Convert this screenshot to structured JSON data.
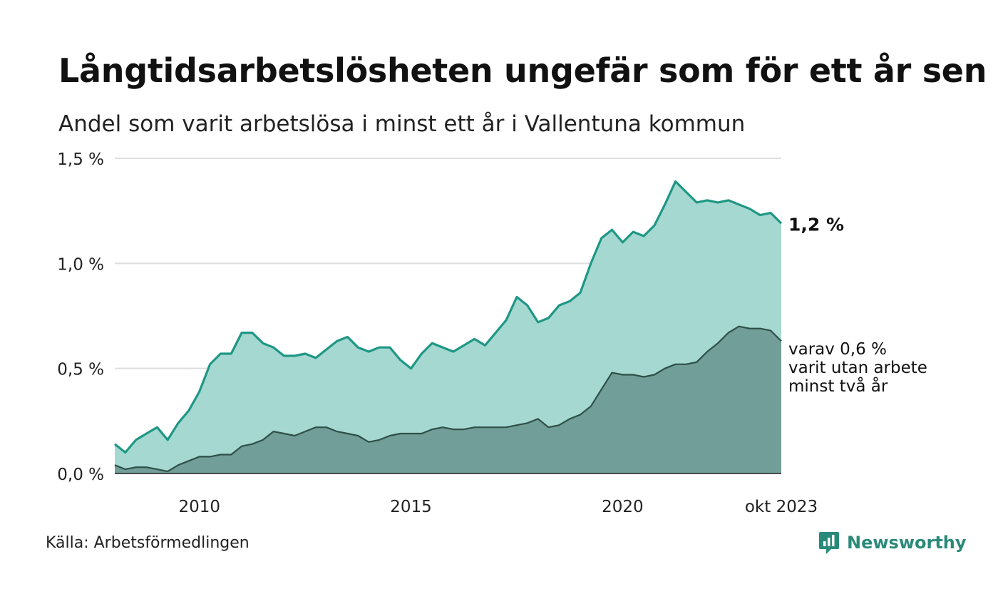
{
  "title": "Långtidsarbetslösheten ungefär som för ett år sen",
  "subtitle": "Andel som varit arbetslösa i minst ett år i Vallentuna kommun",
  "source": "Källa: Arbetsförmedlingen",
  "brand": "Newsworthy",
  "colors": {
    "main_line": "#1f9785",
    "main_fill": "#a4d8d1",
    "sub_line": "#2f4f49",
    "sub_fill": "#719e98",
    "grid": "#dddddd",
    "brand": "#2a8a7a"
  },
  "chart_data": {
    "type": "area",
    "title": "Långtidsarbetslösheten ungefär som för ett år sen",
    "subtitle": "Andel som varit arbetslösa i minst ett år i Vallentuna kommun",
    "ylim": [
      0,
      1.5
    ],
    "y_ticks": [
      0,
      0.5,
      1.0,
      1.5
    ],
    "y_tick_labels": [
      "0,0 %",
      "0,5 %",
      "1,0 %",
      "1,5 %"
    ],
    "x_range": [
      2008.0,
      2023.75
    ],
    "x_ticks": [
      2010,
      2015,
      2020,
      2023.75
    ],
    "x_tick_labels": [
      "2010",
      "2015",
      "2020",
      "okt 2023"
    ],
    "grid": true,
    "series": [
      {
        "name": "Andel arbetslösa minst ett år",
        "end_label": "1,2 %",
        "x": [
          2008.0,
          2008.25,
          2008.5,
          2008.75,
          2009.0,
          2009.25,
          2009.5,
          2009.75,
          2010.0,
          2010.25,
          2010.5,
          2010.75,
          2011.0,
          2011.25,
          2011.5,
          2011.75,
          2012.0,
          2012.25,
          2012.5,
          2012.75,
          2013.0,
          2013.25,
          2013.5,
          2013.75,
          2014.0,
          2014.25,
          2014.5,
          2014.75,
          2015.0,
          2015.25,
          2015.5,
          2015.75,
          2016.0,
          2016.25,
          2016.5,
          2016.75,
          2017.0,
          2017.25,
          2017.5,
          2017.75,
          2018.0,
          2018.25,
          2018.5,
          2018.75,
          2019.0,
          2019.25,
          2019.5,
          2019.75,
          2020.0,
          2020.25,
          2020.5,
          2020.75,
          2021.0,
          2021.25,
          2021.5,
          2021.75,
          2022.0,
          2022.25,
          2022.5,
          2022.75,
          2023.0,
          2023.25,
          2023.5,
          2023.75
        ],
        "values": [
          0.14,
          0.1,
          0.16,
          0.19,
          0.22,
          0.16,
          0.24,
          0.3,
          0.39,
          0.52,
          0.57,
          0.57,
          0.67,
          0.67,
          0.62,
          0.6,
          0.56,
          0.56,
          0.57,
          0.55,
          0.59,
          0.63,
          0.65,
          0.6,
          0.58,
          0.6,
          0.6,
          0.54,
          0.5,
          0.57,
          0.62,
          0.6,
          0.58,
          0.61,
          0.64,
          0.61,
          0.67,
          0.73,
          0.84,
          0.8,
          0.72,
          0.74,
          0.8,
          0.82,
          0.86,
          1.0,
          1.12,
          1.16,
          1.1,
          1.15,
          1.13,
          1.18,
          1.28,
          1.39,
          1.34,
          1.29,
          1.3,
          1.29,
          1.3,
          1.28,
          1.26,
          1.23,
          1.24,
          1.19
        ]
      },
      {
        "name": "varav varit utan arbete minst två år",
        "end_label_lines": [
          "varav 0,6 %",
          "varit utan arbete",
          "minst två år"
        ],
        "x": [
          2008.0,
          2008.25,
          2008.5,
          2008.75,
          2009.0,
          2009.25,
          2009.5,
          2009.75,
          2010.0,
          2010.25,
          2010.5,
          2010.75,
          2011.0,
          2011.25,
          2011.5,
          2011.75,
          2012.0,
          2012.25,
          2012.5,
          2012.75,
          2013.0,
          2013.25,
          2013.5,
          2013.75,
          2014.0,
          2014.25,
          2014.5,
          2014.75,
          2015.0,
          2015.25,
          2015.5,
          2015.75,
          2016.0,
          2016.25,
          2016.5,
          2016.75,
          2017.0,
          2017.25,
          2017.5,
          2017.75,
          2018.0,
          2018.25,
          2018.5,
          2018.75,
          2019.0,
          2019.25,
          2019.5,
          2019.75,
          2020.0,
          2020.25,
          2020.5,
          2020.75,
          2021.0,
          2021.25,
          2021.5,
          2021.75,
          2022.0,
          2022.25,
          2022.5,
          2022.75,
          2023.0,
          2023.25,
          2023.5,
          2023.75
        ],
        "values": [
          0.04,
          0.02,
          0.03,
          0.03,
          0.02,
          0.01,
          0.04,
          0.06,
          0.08,
          0.08,
          0.09,
          0.09,
          0.13,
          0.14,
          0.16,
          0.2,
          0.19,
          0.18,
          0.2,
          0.22,
          0.22,
          0.2,
          0.19,
          0.18,
          0.15,
          0.16,
          0.18,
          0.19,
          0.19,
          0.19,
          0.21,
          0.22,
          0.21,
          0.21,
          0.22,
          0.22,
          0.22,
          0.22,
          0.23,
          0.24,
          0.26,
          0.22,
          0.23,
          0.26,
          0.28,
          0.32,
          0.4,
          0.48,
          0.47,
          0.47,
          0.46,
          0.47,
          0.5,
          0.52,
          0.52,
          0.53,
          0.58,
          0.62,
          0.67,
          0.7,
          0.69,
          0.69,
          0.68,
          0.63
        ]
      }
    ]
  }
}
